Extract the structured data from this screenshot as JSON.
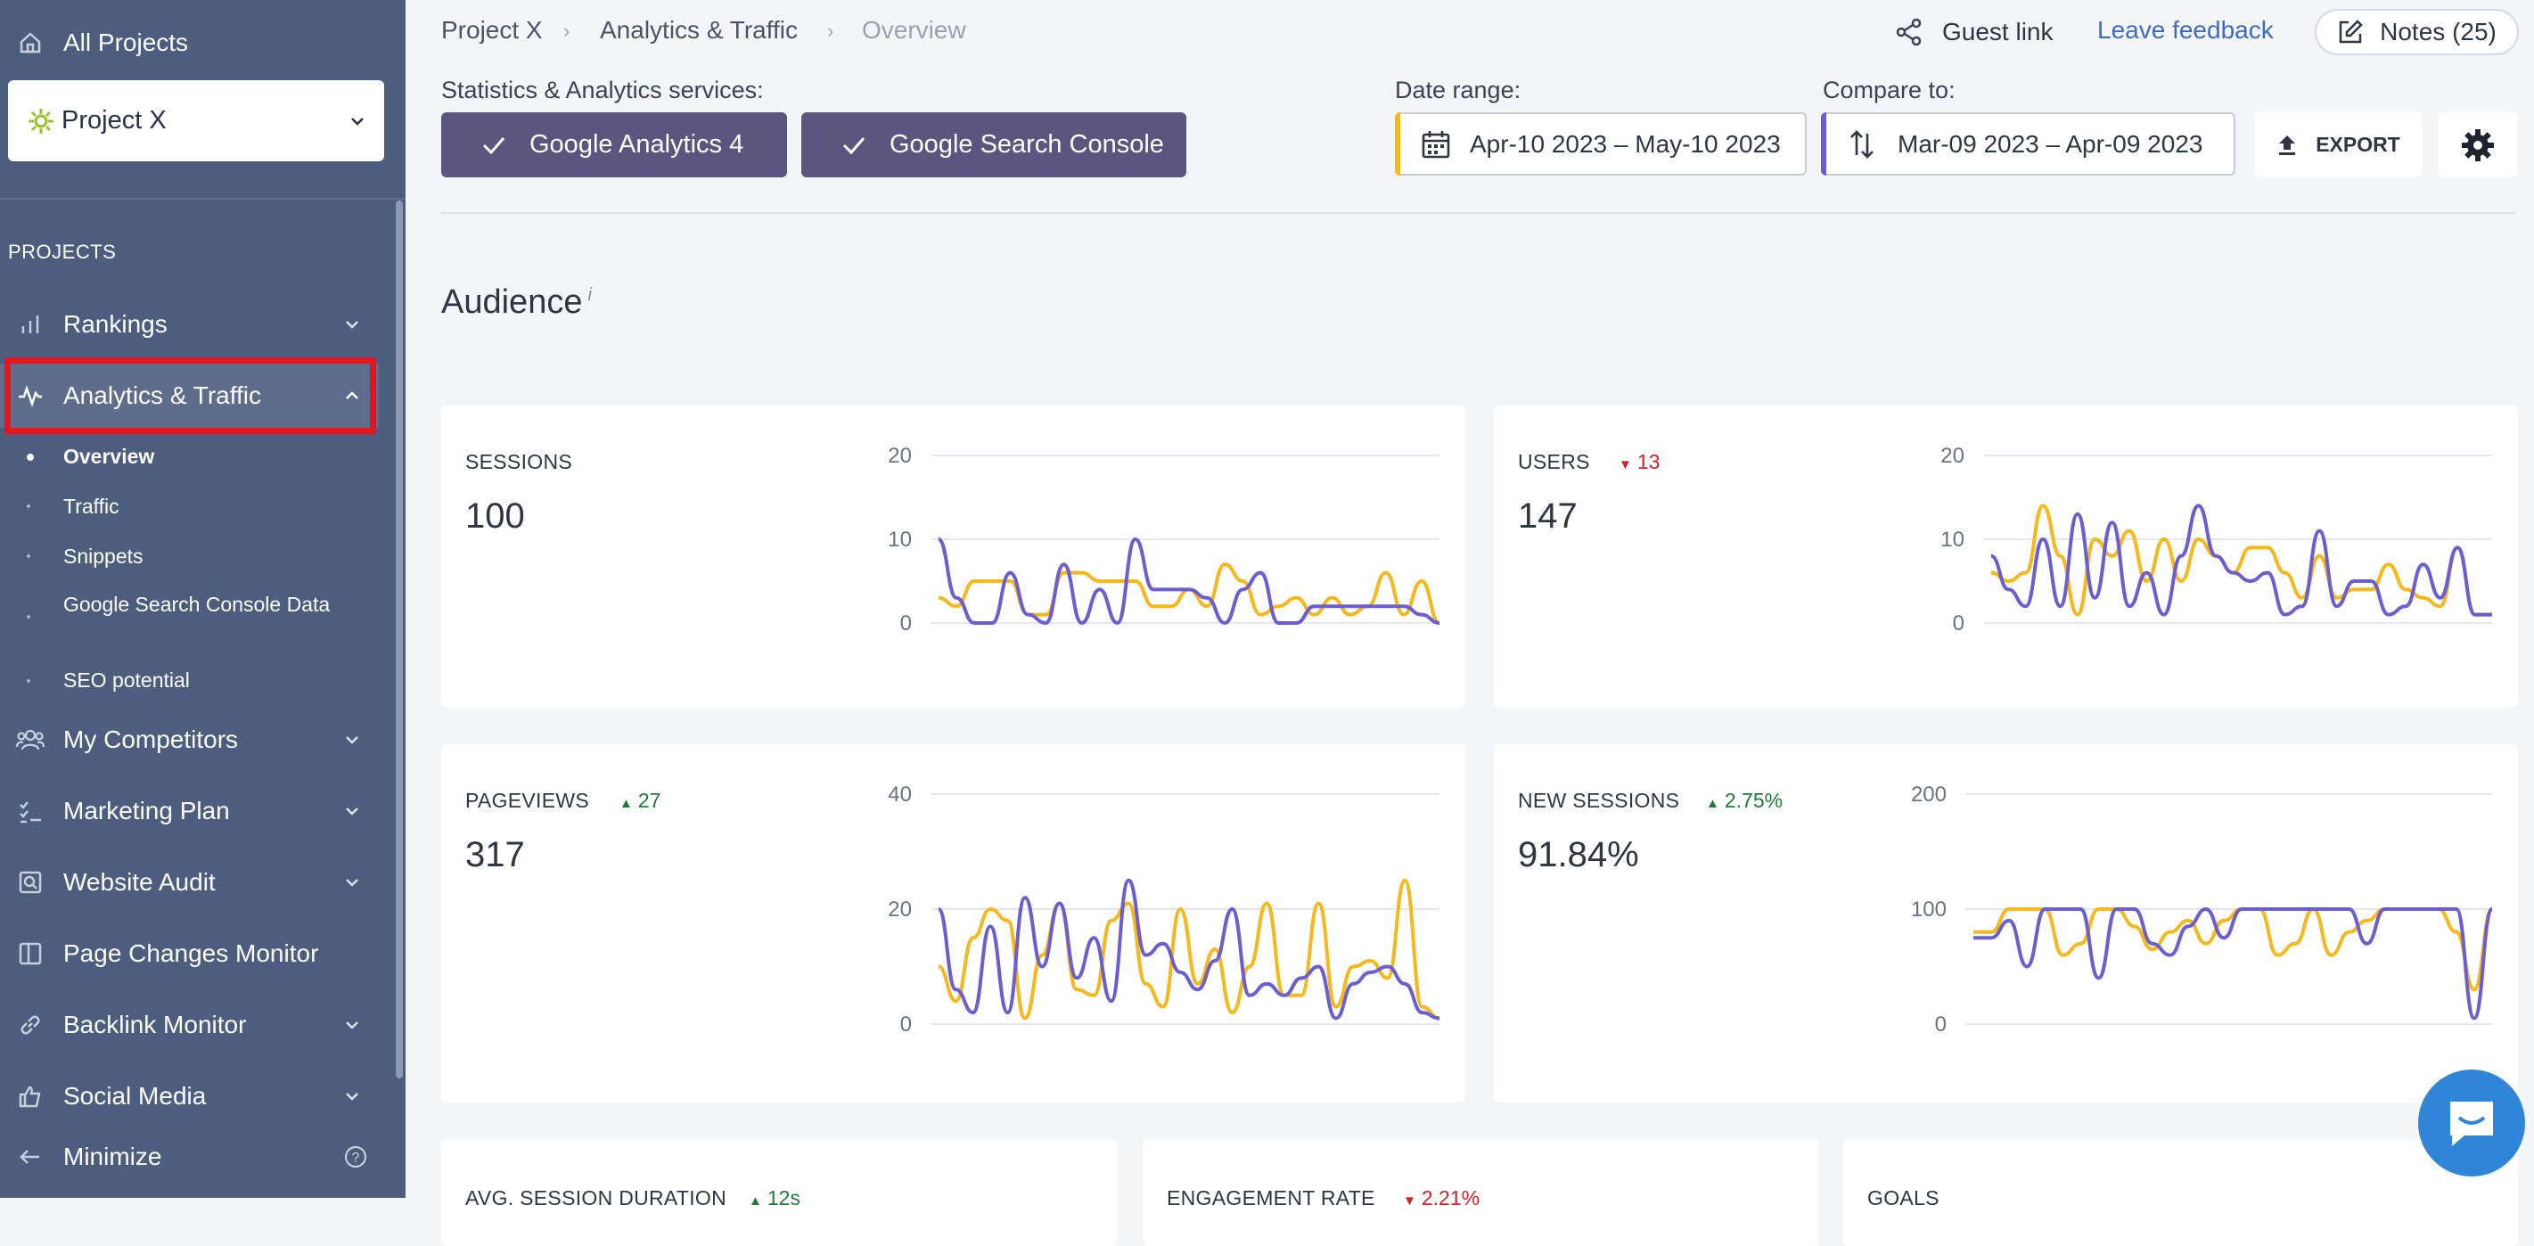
{
  "sidebar": {
    "all_projects": "All Projects",
    "project_name": "Project X",
    "section_title": "PROJECTS",
    "items": [
      {
        "label": "Rankings"
      },
      {
        "label": "Analytics & Traffic"
      },
      {
        "label": "My Competitors"
      },
      {
        "label": "Marketing Plan"
      },
      {
        "label": "Website Audit"
      },
      {
        "label": "Page Changes Monitor"
      },
      {
        "label": "Backlink Monitor"
      },
      {
        "label": "Social Media"
      }
    ],
    "subitems": [
      "Overview",
      "Traffic",
      "Snippets",
      "Google Search Console Data",
      "SEO potential"
    ],
    "minimize": "Minimize"
  },
  "breadcrumb": [
    "Project X",
    "Analytics & Traffic",
    "Overview"
  ],
  "topbar": {
    "guest_link": "Guest link",
    "feedback": "Leave feedback",
    "notes": "Notes (25)"
  },
  "services": {
    "label": "Statistics & Analytics services:",
    "items": [
      "Google Analytics 4",
      "Google Search Console"
    ]
  },
  "date_range": {
    "label": "Date range:",
    "value": "Apr-10 2023 – May-10 2023"
  },
  "compare": {
    "label": "Compare to:",
    "value": "Mar-09 2023 – Apr-09 2023"
  },
  "export_label": "EXPORT",
  "section_title": "Audience",
  "section_info": "i",
  "colors": {
    "current": "#6a5ed1",
    "previous": "#f6b81a",
    "sidebar": "#4d5d7d",
    "up": "#1e7a3c",
    "down": "#d0202a"
  },
  "cards": [
    {
      "title": "SESSIONS",
      "value": "100",
      "change": "",
      "direction": ""
    },
    {
      "title": "USERS",
      "value": "147",
      "change": "13",
      "direction": "down"
    },
    {
      "title": "PAGEVIEWS",
      "value": "317",
      "change": "27",
      "direction": "up"
    },
    {
      "title": "NEW SESSIONS",
      "value": "91.84%",
      "change": "2.75%",
      "direction": "up"
    },
    {
      "title": "AVG. SESSION DURATION",
      "change": "12s",
      "direction": "up"
    },
    {
      "title": "ENGAGEMENT RATE",
      "change": "2.21%",
      "direction": "down"
    },
    {
      "title": "GOALS"
    }
  ],
  "chart_data": [
    {
      "type": "line",
      "yticks": [
        0,
        10,
        20
      ],
      "ylim": [
        0,
        20
      ],
      "series": [
        {
          "values": [
            10,
            3,
            0,
            0,
            6,
            1,
            0,
            7,
            0,
            4,
            0,
            10,
            4,
            4,
            4,
            3,
            0,
            4,
            6,
            0,
            0,
            2,
            2,
            2,
            2,
            2,
            2,
            1,
            0
          ]
        },
        {
          "values": [
            3,
            2,
            5,
            5,
            5,
            1,
            1,
            6,
            6,
            5,
            5,
            5,
            2,
            2,
            4,
            2,
            7,
            5,
            1,
            2,
            3,
            1,
            3,
            1,
            2,
            6,
            1,
            5,
            0
          ]
        }
      ]
    },
    {
      "type": "line",
      "yticks": [
        0,
        10,
        20
      ],
      "ylim": [
        0,
        20
      ],
      "series": [
        {
          "values": [
            8,
            4,
            2,
            10,
            2,
            13,
            3,
            12,
            2,
            6,
            1,
            8,
            14,
            8,
            6,
            5,
            6,
            1,
            2,
            11,
            2,
            5,
            5,
            1,
            2,
            7,
            3,
            9,
            1,
            1
          ]
        },
        {
          "values": [
            6,
            5,
            6,
            14,
            8,
            1,
            10,
            8,
            11,
            5,
            10,
            5,
            10,
            8,
            6,
            9,
            9,
            6,
            3,
            8,
            3,
            4,
            4,
            7,
            4,
            3,
            2,
            9,
            1,
            1
          ]
        }
      ]
    },
    {
      "type": "line",
      "yticks": [
        0,
        20,
        40
      ],
      "ylim": [
        0,
        40
      ],
      "series": [
        {
          "values": [
            20,
            6,
            2,
            17,
            2,
            22,
            10,
            21,
            8,
            15,
            4,
            25,
            12,
            14,
            9,
            6,
            11,
            20,
            5,
            7,
            5,
            8,
            10,
            1,
            7,
            9,
            10,
            7,
            2,
            1
          ]
        },
        {
          "values": [
            10,
            4,
            15,
            20,
            18,
            1,
            12,
            21,
            6,
            5,
            18,
            21,
            7,
            3,
            20,
            7,
            13,
            2,
            10,
            21,
            5,
            5,
            21,
            3,
            10,
            11,
            8,
            25,
            3,
            1
          ]
        }
      ]
    },
    {
      "type": "line",
      "yticks": [
        0,
        100,
        200
      ],
      "ylim": [
        0,
        200
      ],
      "series": [
        {
          "values": [
            75,
            75,
            90,
            50,
            100,
            100,
            100,
            40,
            100,
            100,
            70,
            60,
            85,
            100,
            75,
            100,
            100,
            100,
            100,
            100,
            100,
            100,
            70,
            100,
            100,
            100,
            100,
            100,
            5,
            100
          ]
        },
        {
          "values": [
            80,
            80,
            100,
            100,
            100,
            60,
            70,
            100,
            100,
            85,
            65,
            80,
            90,
            70,
            90,
            100,
            100,
            60,
            70,
            100,
            60,
            80,
            90,
            100,
            100,
            100,
            100,
            80,
            30,
            100
          ]
        }
      ]
    }
  ]
}
